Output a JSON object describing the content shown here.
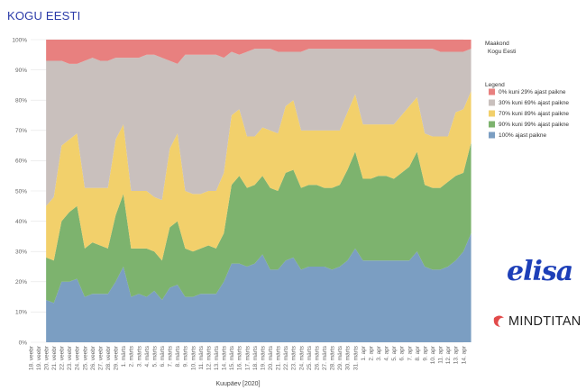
{
  "title": "KOGU EESTI",
  "logos": {
    "elisa": "elisa",
    "mindtitan": "MINDTITAN"
  },
  "chart_data": {
    "type": "area",
    "stacked": true,
    "normalized": true,
    "xlabel": "Kuupäev [2020]",
    "ylabel": "",
    "ylim": [
      0,
      100
    ],
    "yticks": [
      "0%",
      "10%",
      "20%",
      "30%",
      "40%",
      "50%",
      "60%",
      "70%",
      "80%",
      "90%",
      "100%"
    ],
    "grid": true,
    "categories": [
      "18. veebr",
      "19. veebr",
      "20. veebr",
      "21. veebr",
      "22. veebr",
      "23. veebr",
      "24. veebr",
      "25. veebr",
      "26. veebr",
      "27. veebr",
      "28. veebr",
      "29. veebr",
      "1. märts",
      "2. märts",
      "3. märts",
      "4. märts",
      "5. märts",
      "6. märts",
      "7. märts",
      "8. märts",
      "9. märts",
      "10. märts",
      "11. märts",
      "12. märts",
      "13. märts",
      "14. märts",
      "15. märts",
      "16. märts",
      "17. märts",
      "18. märts",
      "19. märts",
      "20. märts",
      "21. märts",
      "22. märts",
      "23. märts",
      "24. märts",
      "25. märts",
      "26. märts",
      "27. märts",
      "28. märts",
      "29. märts",
      "30. märts",
      "31. märts",
      "1. apr",
      "2. apr",
      "3. apr",
      "4. apr",
      "5. apr",
      "6. apr",
      "7. apr",
      "8. apr",
      "9. apr",
      "10. apr",
      "11. apr",
      "12. apr",
      "13. apr",
      "14. apr"
    ],
    "data_start_index": 2,
    "data_end_index": 55,
    "legend": {
      "title": "Legend",
      "position": "right",
      "entries": [
        {
          "label": "0% kuni 29% ajast paikne",
          "color": "#e8807f"
        },
        {
          "label": "30% kuni 69% ajast paikne",
          "color": "#c9c0bd"
        },
        {
          "label": "70% kuni 89% ajast paikne",
          "color": "#f2d06b"
        },
        {
          "label": "90% kuni 99% ajast paikne",
          "color": "#7db36e"
        },
        {
          "label": "100% ajast paikne",
          "color": "#7b9ec2"
        }
      ]
    },
    "filter_panel": {
      "title": "Maakond",
      "value": "Kogu Eesti"
    },
    "cumulative_boundaries": [
      {
        "name": "100% ajast paikne",
        "values": [
          14,
          13,
          20,
          20,
          21,
          15,
          16,
          16,
          16,
          20,
          25,
          15,
          16,
          15,
          17,
          14,
          18,
          19,
          15,
          15,
          16,
          16,
          16,
          20,
          26,
          26,
          25,
          26,
          29,
          24,
          24,
          27,
          28,
          24,
          25,
          25,
          25,
          24,
          25,
          27,
          31,
          27,
          27,
          27,
          27,
          27,
          27,
          27,
          30,
          25,
          24,
          24,
          25,
          27,
          30,
          36
        ]
      },
      {
        "name": "90% kuni 99% ajast paikne",
        "values": [
          28,
          27,
          40,
          43,
          45,
          31,
          33,
          32,
          31,
          42,
          49,
          31,
          31,
          31,
          30,
          27,
          38,
          40,
          31,
          30,
          31,
          32,
          31,
          36,
          52,
          55,
          51,
          52,
          55,
          51,
          50,
          56,
          57,
          51,
          52,
          52,
          51,
          51,
          52,
          57,
          63,
          54,
          54,
          55,
          55,
          54,
          56,
          58,
          63,
          52,
          51,
          51,
          53,
          55,
          56,
          66
        ]
      },
      {
        "name": "70% kuni 89% ajast paikne",
        "values": [
          45,
          48,
          65,
          67,
          69,
          51,
          51,
          51,
          51,
          67,
          72,
          50,
          50,
          50,
          48,
          47,
          64,
          69,
          50,
          49,
          49,
          50,
          50,
          56,
          75,
          77,
          68,
          68,
          71,
          70,
          69,
          78,
          80,
          70,
          70,
          70,
          70,
          70,
          70,
          76,
          82,
          72,
          72,
          72,
          72,
          72,
          75,
          78,
          81,
          69,
          68,
          68,
          68,
          76,
          77,
          83
        ]
      },
      {
        "name": "30% kuni 69% ajast paikne",
        "values": [
          93,
          93,
          93,
          92,
          92,
          93,
          94,
          93,
          93,
          94,
          94,
          94,
          94,
          95,
          95,
          94,
          93,
          92,
          95,
          95,
          95,
          95,
          95,
          94,
          96,
          95,
          96,
          97,
          97,
          97,
          96,
          96,
          96,
          96,
          97,
          97,
          97,
          97,
          97,
          97,
          97,
          97,
          97,
          97,
          97,
          97,
          97,
          97,
          97,
          97,
          97,
          96,
          96,
          96,
          96,
          97
        ]
      },
      {
        "name": "0% kuni 29% ajast paikne",
        "values": [
          100,
          100,
          100,
          100,
          100,
          100,
          100,
          100,
          100,
          100,
          100,
          100,
          100,
          100,
          100,
          100,
          100,
          100,
          100,
          100,
          100,
          100,
          100,
          100,
          100,
          100,
          100,
          100,
          100,
          100,
          100,
          100,
          100,
          100,
          100,
          100,
          100,
          100,
          100,
          100,
          100,
          100,
          100,
          100,
          100,
          100,
          100,
          100,
          100,
          100,
          100,
          100,
          100,
          100,
          100,
          100
        ]
      }
    ]
  }
}
